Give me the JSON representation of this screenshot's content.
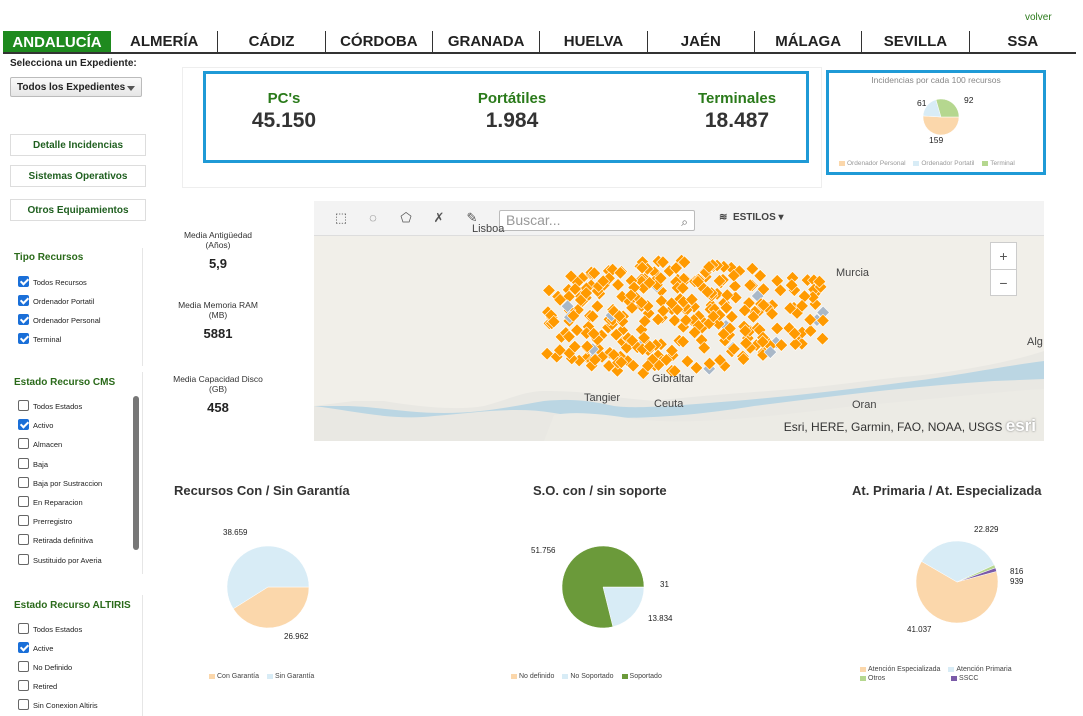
{
  "header": {
    "volver": "volver"
  },
  "provinces": [
    "ANDALUCÍA",
    "ALMERÍA",
    "CÁDIZ",
    "CÓRDOBA",
    "GRANADA",
    "HUELVA",
    "JAÉN",
    "MÁLAGA",
    "SEVILLA",
    "SSA"
  ],
  "sidebar": {
    "select_label": "Selecciona un Expediente:",
    "select_value": "Todos los Expedientes",
    "nav": [
      "Detalle Incidencias",
      "Sistemas Operativos",
      "Otros Equipamientos"
    ],
    "tipo": {
      "title": "Tipo Recursos",
      "items": [
        {
          "label": "Todos Recursos",
          "checked": true
        },
        {
          "label": "Ordenador Portatil",
          "checked": true
        },
        {
          "label": "Ordenador Personal",
          "checked": true
        },
        {
          "label": "Terminal",
          "checked": true
        }
      ]
    },
    "cms": {
      "title": "Estado Recurso CMS",
      "items": [
        {
          "label": "Todos Estados",
          "checked": false
        },
        {
          "label": "Activo",
          "checked": true
        },
        {
          "label": "Almacen",
          "checked": false
        },
        {
          "label": "Baja",
          "checked": false
        },
        {
          "label": "Baja por Sustraccion",
          "checked": false
        },
        {
          "label": "En Reparacion",
          "checked": false
        },
        {
          "label": "Prerregistro",
          "checked": false
        },
        {
          "label": "Retirada definitiva",
          "checked": false
        },
        {
          "label": "Sustituido por Averia",
          "checked": false
        }
      ]
    },
    "altiris": {
      "title": "Estado Recurso ALTIRIS",
      "items": [
        {
          "label": "Todos Estados",
          "checked": false
        },
        {
          "label": "Active",
          "checked": true
        },
        {
          "label": "No Definido",
          "checked": false
        },
        {
          "label": "Retired",
          "checked": false
        },
        {
          "label": "Sin Conexion Altiris",
          "checked": false
        }
      ]
    }
  },
  "kpis": [
    {
      "title": "PC's",
      "value": "45.150"
    },
    {
      "title": "Portátiles",
      "value": "1.984"
    },
    {
      "title": "Terminales",
      "value": "18.487"
    }
  ],
  "stats": [
    {
      "label": "Media Antigüedad",
      "unit": "(Años)",
      "value": "5,9"
    },
    {
      "label": "Media Memoria RAM",
      "unit": "(MB)",
      "value": "5881"
    },
    {
      "label": "Media Capacidad Disco",
      "unit": "(GB)",
      "value": "458"
    }
  ],
  "map": {
    "search_placeholder": "Buscar...",
    "estilos": "ESTILOS",
    "zoom_in": "+",
    "zoom_out": "−",
    "places": [
      "Lisboa",
      "Murcia",
      "Alg",
      "Gibraltar",
      "Tangier",
      "Ceuta",
      "Oran"
    ],
    "attribution": "Esri, HERE, Garmin, FAO, NOAA, USGS",
    "logo": "esri",
    "colors": {
      "marker": "#ff9a00",
      "marker_alt": "#a9b8c8"
    }
  },
  "chart_data": [
    {
      "type": "pie",
      "title": "Incidencias por cada 100 recursos",
      "categories": [
        "Ordenador Personal",
        "Ordenador Portatil",
        "Terminal"
      ],
      "values": [
        159,
        61,
        92
      ],
      "colors": [
        "#fbd7ab",
        "#d8ecf6",
        "#b5d78f"
      ]
    },
    {
      "type": "pie",
      "title": "Recursos Con / Sin Garantía",
      "categories": [
        "Con Garantía",
        "Sin Garantía"
      ],
      "values": [
        26962,
        38659
      ],
      "labels": [
        "26.962",
        "38.659"
      ],
      "colors": [
        "#fbd7ab",
        "#d8ecf6"
      ]
    },
    {
      "type": "pie",
      "title": "S.O. con / sin soporte",
      "categories": [
        "No definido",
        "No Soportado",
        "Soportado"
      ],
      "values": [
        31,
        13834,
        51756
      ],
      "labels": [
        "31",
        "13.834",
        "51.756"
      ],
      "colors": [
        "#fbd7ab",
        "#d8ecf6",
        "#6b9a3a"
      ]
    },
    {
      "type": "pie",
      "title": "At. Primaria / At. Especializada",
      "categories": [
        "Atención Especializada",
        "Atención Primaria",
        "Otros",
        "SSCC"
      ],
      "values": [
        41037,
        22829,
        816,
        939
      ],
      "labels": [
        "41.037",
        "22.829",
        "816",
        "939"
      ],
      "colors": [
        "#fbd7ab",
        "#d8ecf6",
        "#b5d78f",
        "#7a5aa8"
      ]
    }
  ]
}
